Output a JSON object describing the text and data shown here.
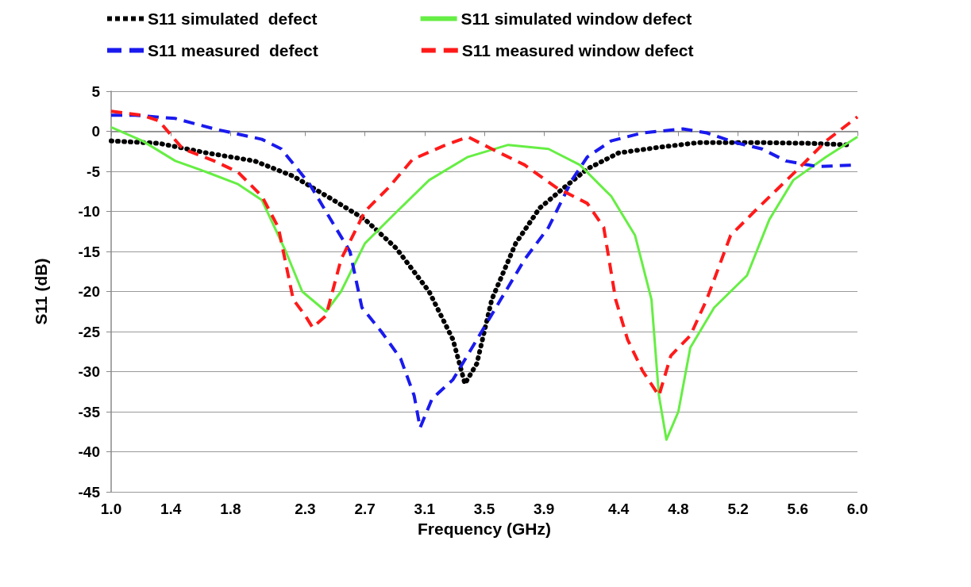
{
  "chart_data": {
    "type": "line",
    "xlabel": "Frequency (GHz)",
    "ylabel": "S11 (dB)",
    "grid": "y",
    "legend": "top",
    "marker": "none",
    "xlim": [
      1,
      6
    ],
    "xticks": [
      {
        "value": 1,
        "label": "1.0"
      },
      {
        "value": 1.4,
        "label": "1.4"
      },
      {
        "value": 1.8,
        "label": "1.8"
      },
      {
        "value": 2.3,
        "label": "2.3"
      },
      {
        "value": 2.7,
        "label": "2.7"
      },
      {
        "value": 3.1,
        "label": "3.1"
      },
      {
        "value": 3.5,
        "label": "3.5"
      },
      {
        "value": 3.9,
        "label": "3.9"
      },
      {
        "value": 4.4,
        "label": "4.4"
      },
      {
        "value": 4.8,
        "label": "4.8"
      },
      {
        "value": 5.2,
        "label": "5.2"
      },
      {
        "value": 5.6,
        "label": "5.6"
      },
      {
        "value": 6,
        "label": "6.0"
      }
    ],
    "ylim": [
      -45,
      5
    ],
    "yticks": [
      -45,
      -40,
      -35,
      -30,
      -25,
      -20,
      -15,
      -10,
      -5,
      0,
      5
    ],
    "series": [
      {
        "name": "S11 simulated  defect",
        "color": "#000000",
        "line_style": "dotted",
        "x": [
          1.0,
          1.32,
          1.64,
          1.96,
          2.22,
          2.49,
          2.7,
          2.91,
          3.13,
          3.29,
          3.37,
          3.45,
          3.55,
          3.71,
          3.87,
          4.03,
          4.19,
          4.4,
          4.67,
          4.94,
          5.31,
          5.68,
          5.95
        ],
        "values": [
          -1.2,
          -1.5,
          -2.7,
          -3.7,
          -5.6,
          -8.6,
          -11,
          -14.6,
          -20,
          -26,
          -31.5,
          -29,
          -21,
          -14,
          -9.6,
          -7.1,
          -4.7,
          -2.7,
          -2,
          -1.4,
          -1.4,
          -1.5,
          -1.7
        ]
      },
      {
        "name": "S11 simulated window defect",
        "color": "#66ee44",
        "line_style": "solid",
        "x": [
          1.0,
          1.21,
          1.43,
          1.64,
          1.85,
          2.01,
          2.17,
          2.28,
          2.44,
          2.54,
          2.7,
          2.91,
          3.13,
          3.39,
          3.66,
          3.93,
          4.14,
          4.35,
          4.51,
          4.62,
          4.67,
          4.72,
          4.8,
          4.88,
          5.04,
          5.26,
          5.41,
          5.57,
          5.79,
          6.0
        ],
        "values": [
          0.5,
          -1.2,
          -3.7,
          -5.1,
          -6.6,
          -8.6,
          -15,
          -20,
          -22.5,
          -20,
          -14,
          -10.1,
          -6.1,
          -3.2,
          -1.7,
          -2.2,
          -4.2,
          -8.1,
          -13,
          -21,
          -33,
          -38.5,
          -35,
          -27,
          -22,
          -18,
          -11,
          -6.1,
          -3.2,
          -0.7
        ]
      },
      {
        "name": "S11 measured  defect",
        "color": "#1a1aee",
        "line_style": "dashed",
        "x": [
          1.0,
          1.16,
          1.43,
          1.69,
          2.01,
          2.14,
          2.33,
          2.49,
          2.6,
          2.68,
          2.81,
          2.94,
          3.03,
          3.07,
          3.15,
          3.29,
          3.45,
          3.61,
          3.77,
          3.93,
          4.09,
          4.19,
          4.35,
          4.56,
          4.83,
          4.99,
          5.2,
          5.36,
          5.52,
          5.73,
          6.0
        ],
        "values": [
          2,
          2,
          1.6,
          0.3,
          -1,
          -2.2,
          -6.6,
          -11.6,
          -15,
          -22,
          -25,
          -28.4,
          -33,
          -37,
          -33.4,
          -31,
          -26,
          -21,
          -16,
          -12,
          -6,
          -3.2,
          -1.2,
          -0.2,
          0.3,
          -0.2,
          -1.5,
          -2.2,
          -3.7,
          -4.4,
          -4.2
        ]
      },
      {
        "name": "S11 measured window defect",
        "color": "#ff1a1a",
        "line_style": "dashed",
        "x": [
          1.0,
          1.21,
          1.32,
          1.48,
          1.69,
          1.85,
          2.01,
          2.12,
          2.22,
          2.3,
          2.35,
          2.44,
          2.54,
          2.7,
          2.86,
          3.02,
          3.23,
          3.39,
          3.55,
          3.77,
          3.98,
          4.19,
          4.3,
          4.38,
          4.46,
          4.56,
          4.67,
          4.75,
          4.88,
          4.99,
          5.15,
          5.31,
          5.47,
          5.63,
          5.79,
          6.0
        ],
        "values": [
          2.5,
          2,
          1.3,
          -2.2,
          -3.7,
          -5.1,
          -8.1,
          -12,
          -21,
          -23,
          -24.5,
          -23,
          -16,
          -10,
          -7,
          -3.5,
          -1.8,
          -0.7,
          -2.2,
          -4.2,
          -7,
          -9,
          -12,
          -21,
          -26,
          -29.9,
          -33,
          -28,
          -25.5,
          -21,
          -13,
          -10,
          -7.1,
          -4.2,
          -1.2,
          1.8
        ]
      }
    ]
  }
}
